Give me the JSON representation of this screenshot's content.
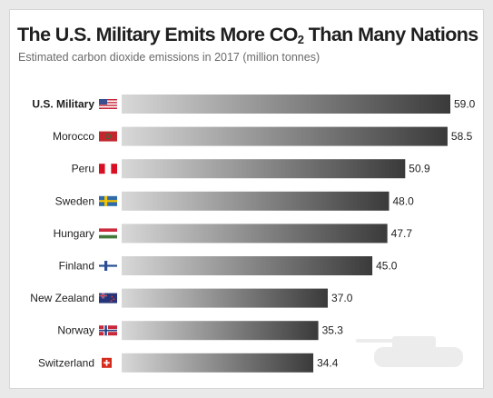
{
  "chart_data": {
    "type": "bar",
    "orientation": "horizontal",
    "title_main": "The U.S. Military Emits More CO",
    "title_sub": "2",
    "title_tail": " Than Many Nations",
    "subtitle": "Estimated carbon dioxide emissions in 2017 (million tonnes)",
    "categories": [
      "U.S. Military",
      "Morocco",
      "Peru",
      "Sweden",
      "Hungary",
      "Finland",
      "New Zealand",
      "Norway",
      "Switzerland"
    ],
    "values": [
      59.0,
      58.5,
      50.9,
      48.0,
      47.7,
      45.0,
      37.0,
      35.3,
      34.4
    ],
    "value_labels": [
      "59.0",
      "58.5",
      "50.9",
      "48.0",
      "47.7",
      "45.0",
      "37.0",
      "35.3",
      "34.4"
    ],
    "flags": [
      "us-flag-icon",
      "morocco-flag-icon",
      "peru-flag-icon",
      "sweden-flag-icon",
      "hungary-flag-icon",
      "finland-flag-icon",
      "new-zealand-flag-icon",
      "norway-flag-icon",
      "switzerland-flag-icon"
    ],
    "xlim": [
      0,
      59
    ],
    "grid": false,
    "legend": "none",
    "bar_gradient": [
      "#d8d8d8",
      "#3a3a3a"
    ]
  }
}
